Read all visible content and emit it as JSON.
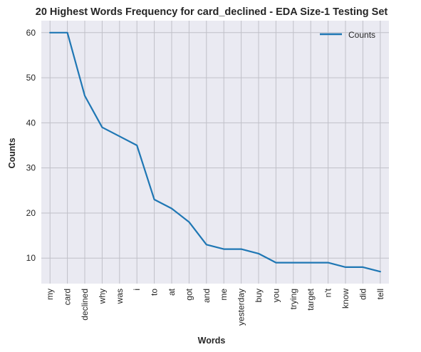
{
  "chart_data": {
    "type": "line",
    "title": "20 Highest Words Frequency for card_declined - EDA Size-1 Testing Set",
    "xlabel": "Words",
    "ylabel": "Counts",
    "categories": [
      "my",
      "card",
      "declined",
      "why",
      "was",
      "i",
      "to",
      "at",
      "got",
      "and",
      "me",
      "yesterday",
      "buy",
      "you",
      "trying",
      "target",
      "n't",
      "know",
      "did",
      "tell"
    ],
    "series": [
      {
        "name": "Counts",
        "color": "#1f77b4",
        "values": [
          60,
          60,
          46,
          39,
          37,
          35,
          23,
          21,
          18,
          13,
          12,
          12,
          11,
          9,
          9,
          9,
          9,
          8,
          8,
          7
        ]
      }
    ],
    "ylim": [
      4.35,
      62.65
    ],
    "yticks": [
      10,
      20,
      30,
      40,
      50,
      60
    ],
    "grid": true,
    "legend": "top-right",
    "background": "#eaeaf2",
    "grid_color": "#c0c0c8"
  }
}
